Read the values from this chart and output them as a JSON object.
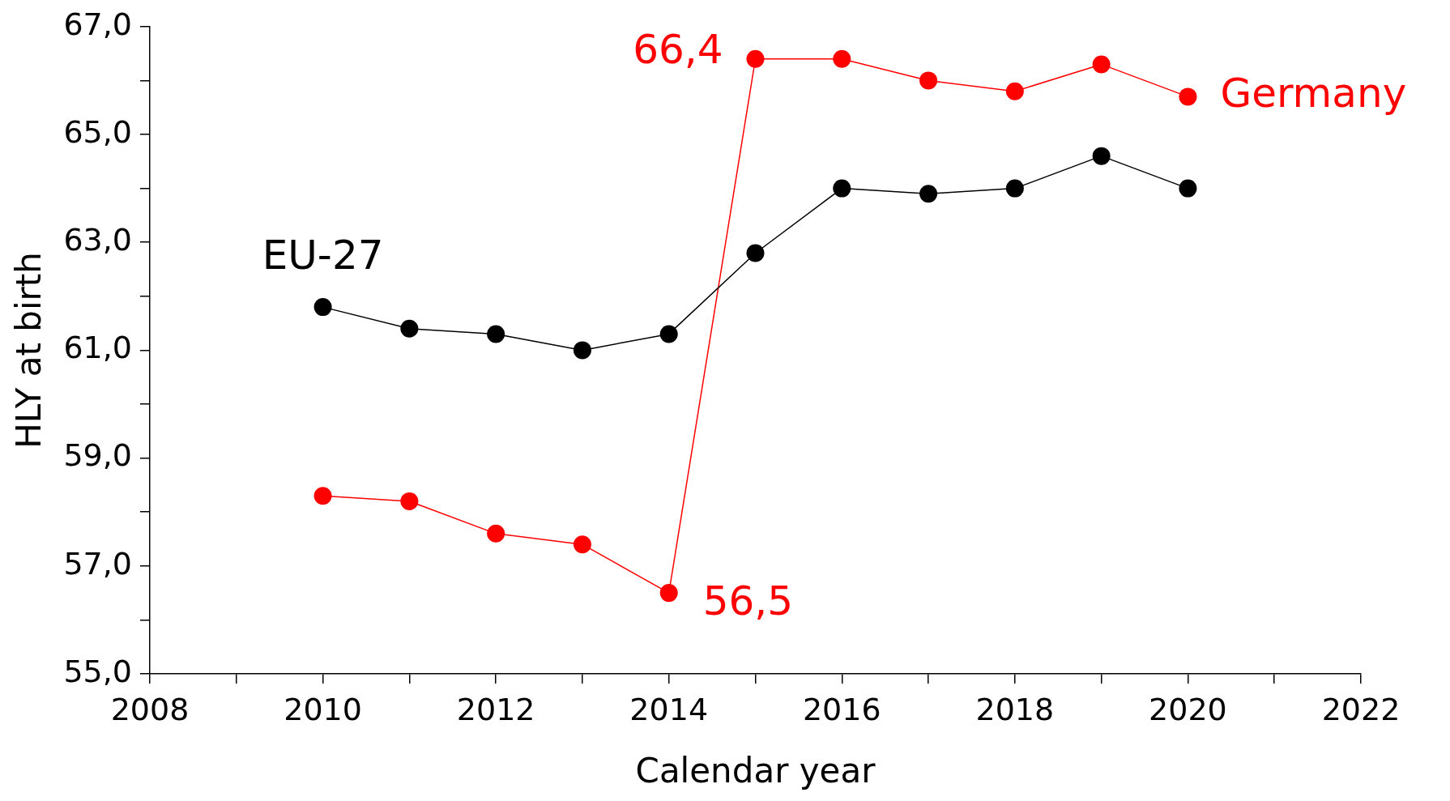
{
  "chart_data": {
    "type": "line",
    "xlabel": "Calendar year",
    "ylabel": "HLY at birth",
    "x": [
      2010,
      2011,
      2012,
      2013,
      2014,
      2015,
      2016,
      2017,
      2018,
      2019,
      2020
    ],
    "series": [
      {
        "name": "EU-27",
        "color": "#000000",
        "values": [
          61.8,
          61.4,
          61.3,
          61.0,
          61.3,
          62.8,
          64.0,
          63.9,
          64.0,
          64.6,
          64.0
        ]
      },
      {
        "name": "Germany",
        "color": "#ff0000",
        "values": [
          58.3,
          58.2,
          57.6,
          57.4,
          56.5,
          66.4,
          66.4,
          66.0,
          65.8,
          66.3,
          65.7
        ]
      }
    ],
    "annotations": [
      {
        "text": "66,4",
        "x": 2015,
        "y": 66.4
      },
      {
        "text": "56,5",
        "x": 2014,
        "y": 56.5
      }
    ],
    "xlim": [
      2008,
      2022
    ],
    "xticks": [
      2008,
      {
        "value": 2009,
        "label": null
      },
      2010,
      {
        "value": 2011,
        "label": null
      },
      2012,
      {
        "value": 2013,
        "label": null
      },
      2014,
      {
        "value": 2015,
        "label": null
      },
      2016,
      {
        "value": 2017,
        "label": null
      },
      2018,
      {
        "value": 2019,
        "label": null
      },
      2020,
      {
        "value": 2021,
        "label": null
      },
      2022
    ],
    "ylim": [
      55,
      67
    ],
    "yticks": [
      {
        "value": 55,
        "label": "55,0"
      },
      {
        "value": 56,
        "label": null
      },
      {
        "value": 57,
        "label": "57,0"
      },
      {
        "value": 58,
        "label": null
      },
      {
        "value": 59,
        "label": "59,0"
      },
      {
        "value": 60,
        "label": null
      },
      {
        "value": 61,
        "label": "61,0"
      },
      {
        "value": 62,
        "label": null
      },
      {
        "value": 63,
        "label": "63,0"
      },
      {
        "value": 64,
        "label": null
      },
      {
        "value": 65,
        "label": "65,0"
      },
      {
        "value": 66,
        "label": null
      },
      {
        "value": 67,
        "label": "67,0"
      }
    ],
    "grid": false,
    "legend": false,
    "marker": "circle",
    "line_style": "solid"
  }
}
